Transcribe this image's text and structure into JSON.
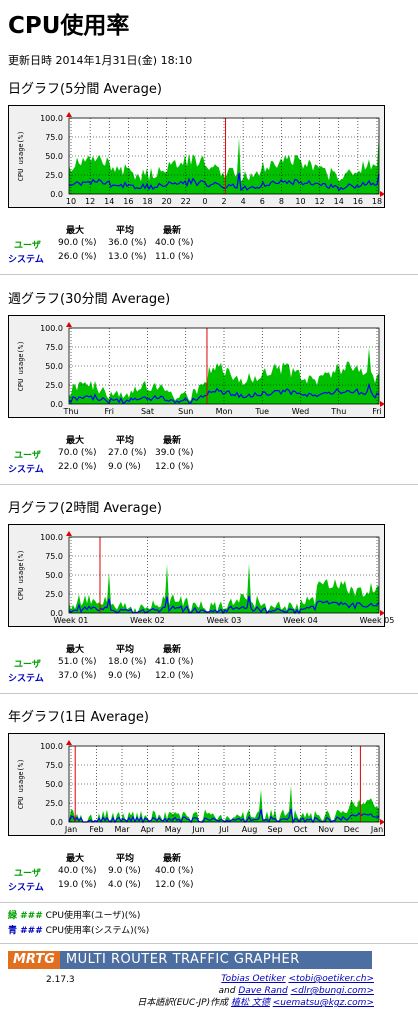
{
  "page": {
    "title": "CPU使用率",
    "updated": "更新日時 2014年1月31日(金) 18:10"
  },
  "stats_headers": {
    "max": "最大",
    "avg": "平均",
    "cur": "最新"
  },
  "row_labels": {
    "user": "ユーザ",
    "system": "システム"
  },
  "colors": {
    "user": "#00c000",
    "system": "#0000ff",
    "grid": "#000000",
    "background": "#ffffff"
  },
  "sections": [
    {
      "heading": "日グラフ(5分間 Average)",
      "ylabel": "CPU usage(%)",
      "yticks": [
        "100.0",
        "75.0",
        "50.0",
        "25.0",
        "0.0"
      ],
      "xticks": [
        "10",
        "12",
        "14",
        "16",
        "18",
        "20",
        "22",
        "0",
        "2",
        "4",
        "6",
        "8",
        "10",
        "12",
        "14",
        "16",
        "18"
      ],
      "user": {
        "max": "90.0 (%)",
        "avg": "36.0 (%)",
        "cur": "40.0 (%)"
      },
      "system": {
        "max": "26.0 (%)",
        "avg": "13.0 (%)",
        "cur": "11.0 (%)"
      }
    },
    {
      "heading": "週グラフ(30分間 Average)",
      "ylabel": "CPU usage(%)",
      "yticks": [
        "100.0",
        "75.0",
        "50.0",
        "25.0",
        "0.0"
      ],
      "xticks": [
        "Thu",
        "Fri",
        "Sat",
        "Sun",
        "Mon",
        "Tue",
        "Wed",
        "Thu",
        "Fri"
      ],
      "user": {
        "max": "70.0 (%)",
        "avg": "27.0 (%)",
        "cur": "39.0 (%)"
      },
      "system": {
        "max": "22.0 (%)",
        "avg": "9.0 (%)",
        "cur": "12.0 (%)"
      }
    },
    {
      "heading": "月グラフ(2時間 Average)",
      "ylabel": "CPU usage(%)",
      "yticks": [
        "100.0",
        "75.0",
        "50.0",
        "25.0",
        "0.0"
      ],
      "xticks": [
        "Week 01",
        "Week 02",
        "Week 03",
        "Week 04",
        "Week 05"
      ],
      "user": {
        "max": "51.0 (%)",
        "avg": "18.0 (%)",
        "cur": "41.0 (%)"
      },
      "system": {
        "max": "37.0 (%)",
        "avg": "9.0 (%)",
        "cur": "12.0 (%)"
      }
    },
    {
      "heading": "年グラフ(1日 Average)",
      "ylabel": "CPU usage(%)",
      "yticks": [
        "100.0",
        "75.0",
        "50.0",
        "25.0",
        "0.0"
      ],
      "xticks": [
        "Jan",
        "Feb",
        "Mar",
        "Apr",
        "May",
        "Jun",
        "Jul",
        "Aug",
        "Sep",
        "Oct",
        "Nov",
        "Dec",
        "Jan"
      ],
      "user": {
        "max": "40.0 (%)",
        "avg": "9.0 (%)",
        "cur": "40.0 (%)"
      },
      "system": {
        "max": "19.0 (%)",
        "avg": "4.0 (%)",
        "cur": "12.0 (%)"
      }
    }
  ],
  "legend": {
    "user_key": "緑 ###",
    "user_text": "CPU使用率(ユーザ)(%)",
    "system_key": "青 ###",
    "system_text": "CPU使用率(システム)(%)"
  },
  "footer": {
    "logo": "MRTG",
    "name": "MULTI ROUTER TRAFFIC GRAPHER",
    "version": "2.17.3",
    "author1": "Tobias Oetiker",
    "email1": "<tobi@oetiker.ch>",
    "and": "and",
    "author2": "Dave Rand",
    "email2": "<dlr@bungi.com>",
    "jp_prefix": "日本語訳(EUC-JP)作成",
    "jp_author": "植松 文德",
    "jp_email": "<uematsu@kgz.com>"
  }
}
